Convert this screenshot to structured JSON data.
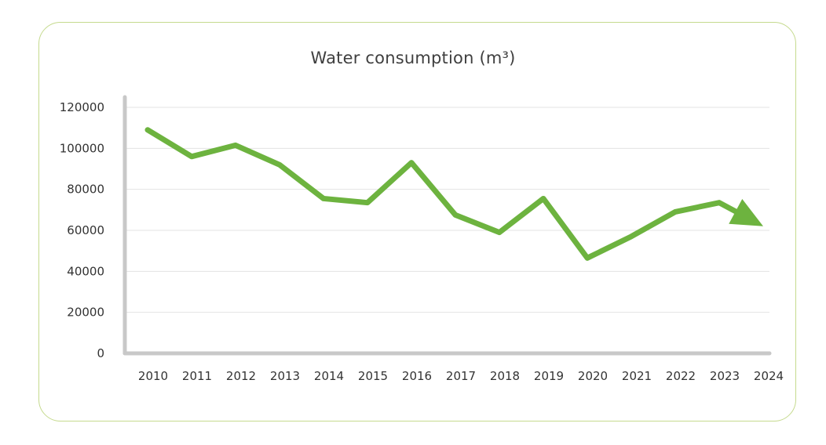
{
  "chart_data": {
    "type": "line",
    "title": "Water consumption (m³)",
    "xlabel": "",
    "ylabel": "",
    "categories": [
      "2010",
      "2011",
      "2012",
      "2013",
      "2014",
      "2015",
      "2016",
      "2017",
      "2018",
      "2019",
      "2020",
      "2021",
      "2022",
      "2023",
      "2024"
    ],
    "yticks": [
      "0",
      "20000",
      "40000",
      "60000",
      "80000",
      "100000",
      "120000"
    ],
    "ylim": [
      0,
      120000
    ],
    "series": [
      {
        "values": [
          109000,
          96000,
          101500,
          92000,
          75500,
          73500,
          93000,
          67500,
          59000,
          75500,
          46500,
          57000,
          69000,
          73500,
          62000
        ],
        "color": "#6db33f",
        "line_style": "thick line ending in an arrow at 2024"
      }
    ],
    "grid": true,
    "legend": "none"
  }
}
